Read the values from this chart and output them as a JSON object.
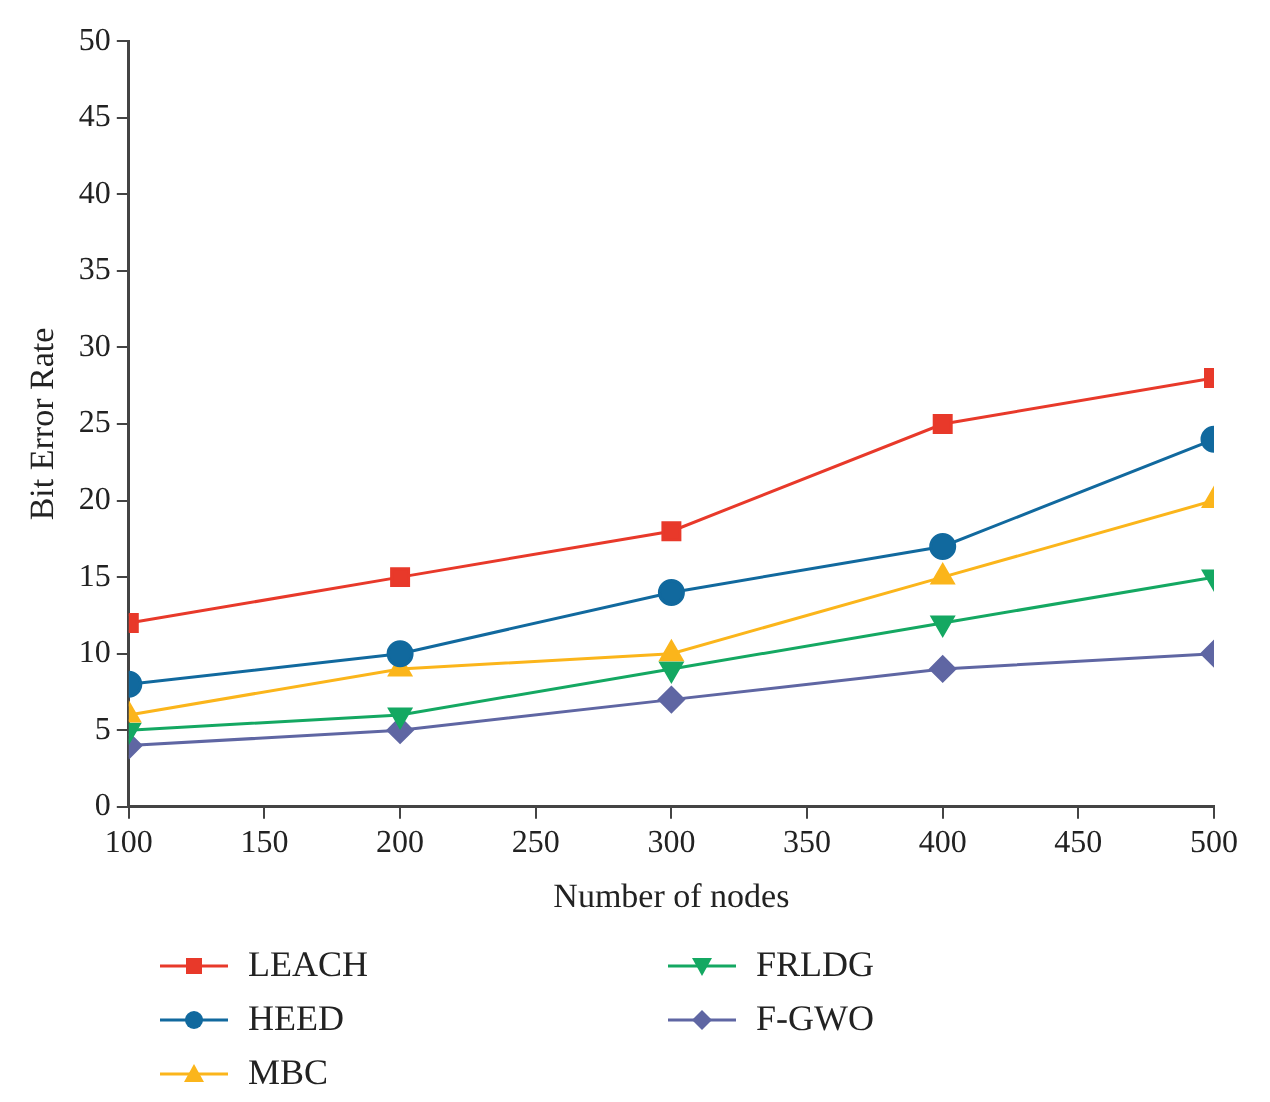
{
  "chart_data": {
    "type": "line",
    "xlabel": "Number of nodes",
    "ylabel": "Bit Error Rate",
    "x": [
      100,
      200,
      300,
      400,
      500
    ],
    "series": [
      {
        "name": "LEACH",
        "color": "#e8392a",
        "marker": "square",
        "values": [
          12,
          15,
          18,
          25,
          28
        ]
      },
      {
        "name": "HEED",
        "color": "#11699e",
        "marker": "circle",
        "values": [
          8,
          10,
          14,
          17,
          24
        ]
      },
      {
        "name": "MBC",
        "color": "#fbb51b",
        "marker": "triangle",
        "values": [
          6,
          9,
          10,
          15,
          20
        ]
      },
      {
        "name": "FRLDG",
        "color": "#14a862",
        "marker": "triangle-down",
        "values": [
          5,
          6,
          9,
          12,
          15
        ]
      },
      {
        "name": "F-GWO",
        "color": "#5f66a3",
        "marker": "diamond",
        "values": [
          4,
          5,
          7,
          9,
          10
        ]
      }
    ],
    "xlim": [
      100,
      500
    ],
    "xticks": [
      100,
      150,
      200,
      250,
      300,
      350,
      400,
      450,
      500
    ],
    "ylim": [
      0,
      50
    ],
    "yticks": [
      0,
      5,
      10,
      15,
      20,
      25,
      30,
      35,
      40,
      45,
      50
    ],
    "grid": false,
    "legend": "bottom"
  }
}
